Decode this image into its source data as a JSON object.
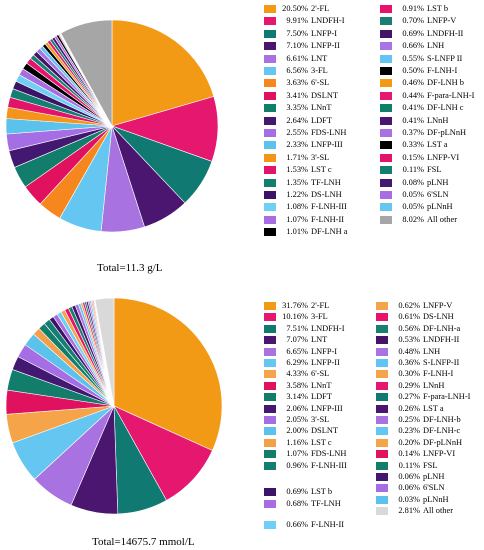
{
  "chart_data": [
    {
      "type": "pie",
      "total_label": "Total=11.3 g/L",
      "slices": [
        {
          "name": "2'-FL",
          "value": 20.5,
          "label": "20.50%",
          "color": "#f29a16"
        },
        {
          "name": "LNDFH-I",
          "value": 9.91,
          "label": "9.91%",
          "color": "#e5176f"
        },
        {
          "name": "LNFP-I",
          "value": 7.5,
          "label": "7.50%",
          "color": "#107a72"
        },
        {
          "name": "LNFP-II",
          "value": 7.1,
          "label": "7.10%",
          "color": "#4a1670"
        },
        {
          "name": "LNT",
          "value": 6.61,
          "label": "6.61%",
          "color": "#a872e0"
        },
        {
          "name": "3-FL",
          "value": 6.56,
          "label": "6.56%",
          "color": "#64c6f1"
        },
        {
          "name": "6'-SL",
          "value": 3.63,
          "label": "3.63%",
          "color": "#f6861e"
        },
        {
          "name": "DSLNT",
          "value": 3.41,
          "label": "3.41%",
          "color": "#e0115f"
        },
        {
          "name": "LNnT",
          "value": 3.35,
          "label": "3.35%",
          "color": "#137d6c"
        },
        {
          "name": "LDFT",
          "value": 2.64,
          "label": "2.64%",
          "color": "#421870"
        },
        {
          "name": "FDS-LNH",
          "value": 2.55,
          "label": "2.55%",
          "color": "#a66ee4"
        },
        {
          "name": "LNFP-III",
          "value": 2.33,
          "label": "2.33%",
          "color": "#5bc2ec"
        },
        {
          "name": "3'-SL",
          "value": 1.71,
          "label": "1.71%",
          "color": "#f4941a"
        },
        {
          "name": "LST c",
          "value": 1.53,
          "label": "1.53%",
          "color": "#e2146a"
        },
        {
          "name": "TF-LNH",
          "value": 1.35,
          "label": "1.35%",
          "color": "#147f70"
        },
        {
          "name": "DS-LNH",
          "value": 1.22,
          "label": "1.22%",
          "color": "#3c1366"
        },
        {
          "name": "F-LNH-III",
          "value": 1.08,
          "label": "1.08%",
          "color": "#6fd0f5"
        },
        {
          "name": "F-LNH-II",
          "value": 1.07,
          "label": "1.07%",
          "color": "#a86de2"
        },
        {
          "name": "DF-LNH a",
          "value": 1.01,
          "label": "1.01%",
          "color": "#000000"
        },
        {
          "name": "LST b",
          "value": 0.91,
          "label": "0.91%",
          "color": "#e8126c"
        },
        {
          "name": "LNFP-V",
          "value": 0.7,
          "label": "0.70%",
          "color": "#1a7f73"
        },
        {
          "name": "LNDFH-II",
          "value": 0.69,
          "label": "0.69%",
          "color": "#451466"
        },
        {
          "name": "LNH",
          "value": 0.66,
          "label": "0.66%",
          "color": "#a874e4"
        },
        {
          "name": "S-LNFP II",
          "value": 0.55,
          "label": "0.55%",
          "color": "#62c4f2"
        },
        {
          "name": "F-LNH-I",
          "value": 0.5,
          "label": "0.50%",
          "color": "#000000"
        },
        {
          "name": "DF-LNH b",
          "value": 0.46,
          "label": "0.46%",
          "color": "#f29a16"
        },
        {
          "name": "F-para-LNH-I",
          "value": 0.44,
          "label": "0.44%",
          "color": "#e5176f"
        },
        {
          "name": "DF-LNH c",
          "value": 0.41,
          "label": "0.41%",
          "color": "#137d6c"
        },
        {
          "name": "LNnH",
          "value": 0.41,
          "label": "0.41%",
          "color": "#4a1670"
        },
        {
          "name": "DF-pLNnH",
          "value": 0.37,
          "label": "0.37%",
          "color": "#a872e0"
        },
        {
          "name": "LST a",
          "value": 0.33,
          "label": "0.33%",
          "color": "#000000"
        },
        {
          "name": "LNFP-VI",
          "value": 0.15,
          "label": "0.15%",
          "color": "#e2146a"
        },
        {
          "name": "FSL",
          "value": 0.11,
          "label": "0.11%",
          "color": "#147f70"
        },
        {
          "name": "pLNH",
          "value": 0.08,
          "label": "0.08%",
          "color": "#421870"
        },
        {
          "name": "6'SLN",
          "value": 0.05,
          "label": "0.05%",
          "color": "#a86de2"
        },
        {
          "name": "pLNnH",
          "value": 0.05,
          "label": "0.05%",
          "color": "#64c6f1"
        },
        {
          "name": "All other",
          "value": 8.02,
          "label": "8.02%",
          "color": "#a6a6a6"
        }
      ]
    },
    {
      "type": "pie",
      "total_label": "Total=14675.7 mmol/L",
      "slices": [
        {
          "name": "2'-FL",
          "value": 31.76,
          "label": "31.76%",
          "color": "#f29a16"
        },
        {
          "name": "3-FL",
          "value": 10.16,
          "label": "10.16%",
          "color": "#e5176f"
        },
        {
          "name": "LNDFH-I",
          "value": 7.51,
          "label": "7.51%",
          "color": "#107a72"
        },
        {
          "name": "LNT",
          "value": 7.07,
          "label": "7.07%",
          "color": "#4a1670"
        },
        {
          "name": "LNFP-I",
          "value": 6.65,
          "label": "6.65%",
          "color": "#a872e0"
        },
        {
          "name": "LNFP-II",
          "value": 6.29,
          "label": "6.29%",
          "color": "#64c6f1"
        },
        {
          "name": "6'-SL",
          "value": 4.33,
          "label": "4.33%",
          "color": "#f6a44a"
        },
        {
          "name": "LNnT",
          "value": 3.58,
          "label": "3.58%",
          "color": "#e0115f"
        },
        {
          "name": "LDFT",
          "value": 3.14,
          "label": "3.14%",
          "color": "#137d6c"
        },
        {
          "name": "LNFP-III",
          "value": 2.06,
          "label": "2.06%",
          "color": "#421870"
        },
        {
          "name": "3'-SL",
          "value": 2.05,
          "label": "2.05%",
          "color": "#a66ee4"
        },
        {
          "name": "DSLNT",
          "value": 2.0,
          "label": "2.00%",
          "color": "#5bc2ec"
        },
        {
          "name": "LST c",
          "value": 1.16,
          "label": "1.16%",
          "color": "#f4a04a"
        },
        {
          "name": "FDS-LNH",
          "value": 1.07,
          "label": "1.07%",
          "color": "#137d6c"
        },
        {
          "name": "F-LNH-III",
          "value": 0.96,
          "label": "0.96%",
          "color": "#147f70"
        },
        {
          "name": "LST b",
          "value": 0.69,
          "label": "0.69%",
          "color": "#3c1366"
        },
        {
          "name": "TF-LNH",
          "value": 0.68,
          "label": "0.68%",
          "color": "#a86de2"
        },
        {
          "name": "F-LNH-II",
          "value": 0.66,
          "label": "0.66%",
          "color": "#6fd0f5"
        },
        {
          "name": "LNFP-V",
          "value": 0.62,
          "label": "0.62%",
          "color": "#f6a44a"
        },
        {
          "name": "DS-LNH",
          "value": 0.61,
          "label": "0.61%",
          "color": "#e8126c"
        },
        {
          "name": "DF-LNH-a",
          "value": 0.56,
          "label": "0.56%",
          "color": "#1a7f73"
        },
        {
          "name": "LNDFH-II",
          "value": 0.53,
          "label": "0.53%",
          "color": "#451466"
        },
        {
          "name": "LNH",
          "value": 0.48,
          "label": "0.48%",
          "color": "#a874e4"
        },
        {
          "name": "S-LNFP-II",
          "value": 0.36,
          "label": "0.36%",
          "color": "#62c4f2"
        },
        {
          "name": "F-LNH-I",
          "value": 0.3,
          "label": "0.30%",
          "color": "#f6a44a"
        },
        {
          "name": "LNnH",
          "value": 0.29,
          "label": "0.29%",
          "color": "#e5176f"
        },
        {
          "name": "F-para-LNH-I",
          "value": 0.27,
          "label": "0.27%",
          "color": "#107a72"
        },
        {
          "name": "LST a",
          "value": 0.26,
          "label": "0.26%",
          "color": "#4a1670"
        },
        {
          "name": "DF-LNH-b",
          "value": 0.25,
          "label": "0.25%",
          "color": "#a872e0"
        },
        {
          "name": "DF-LNH-c",
          "value": 0.23,
          "value_note": "",
          "label": "0.23%",
          "color": "#64c6f1"
        },
        {
          "name": "DF-pLNnH",
          "value": 0.2,
          "label": "0.20%",
          "color": "#f6a44a"
        },
        {
          "name": "LNFP-VI",
          "value": 0.14,
          "label": "0.14%",
          "color": "#e0115f"
        },
        {
          "name": "FSL",
          "value": 0.11,
          "label": "0.11%",
          "color": "#137d6c"
        },
        {
          "name": "pLNH",
          "value": 0.06,
          "label": "0.06%",
          "color": "#421870"
        },
        {
          "name": "6'SLN",
          "value": 0.06,
          "label": "0.06%",
          "color": "#a66ee4"
        },
        {
          "name": "pLNnH",
          "value": 0.03,
          "label": "0.03%",
          "color": "#5bc2ec"
        },
        {
          "name": "All other",
          "value": 2.81,
          "label": "2.81%",
          "color": "#d9d9d9"
        }
      ]
    }
  ]
}
